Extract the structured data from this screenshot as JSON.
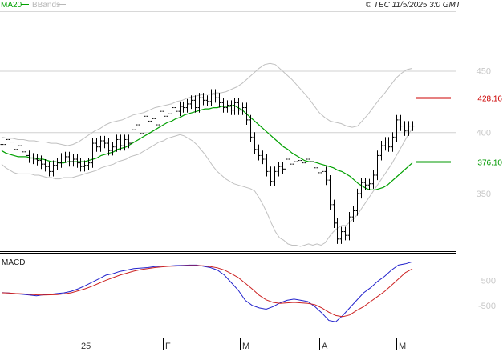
{
  "copyright": "© TEC 11/5/2025 3:0 GMT",
  "legend": {
    "ma_label": "MA20",
    "bb_label": "BBands",
    "ma_color": "#00a000",
    "bb_color": "#b8b8b8"
  },
  "colors": {
    "candle": "#000000",
    "ma": "#00a000",
    "bands": "#c0c0c0",
    "resistance": "#cc0000",
    "support": "#009900",
    "macd": "#2222cc",
    "signal": "#cc2222",
    "grid": "#cccccc"
  },
  "chart_data": [
    {
      "type": "candlestick",
      "title": "",
      "ylim": [
        300,
        470
      ],
      "y_ticks": [
        350,
        400,
        450
      ],
      "y_tick_labels": [
        "350",
        "400",
        "450"
      ],
      "x_tick_labels": [
        "25",
        "F",
        "M",
        "A",
        "M"
      ],
      "levels": [
        {
          "name": "resistance",
          "value": 428.16,
          "label": "428.16"
        },
        {
          "name": "support",
          "value": 376.1,
          "label": "376.10"
        }
      ],
      "series": [
        {
          "name": "price",
          "close": [
            390,
            394,
            392,
            386,
            389,
            384,
            381,
            379,
            378,
            377,
            374,
            372,
            368,
            373,
            375,
            379,
            380,
            376,
            378,
            375,
            372,
            373,
            375,
            391,
            388,
            393,
            391,
            385,
            388,
            394,
            389,
            394,
            391,
            402,
            406,
            399,
            413,
            409,
            411,
            406,
            417,
            413,
            415,
            420,
            417,
            421,
            420,
            423,
            426,
            420,
            428,
            426,
            425,
            431,
            428,
            424,
            420,
            422,
            418,
            424,
            418,
            420,
            410,
            396,
            386,
            381,
            378,
            368,
            360,
            368,
            372,
            370,
            378,
            374,
            376,
            377,
            375,
            378,
            376,
            371,
            367,
            368,
            361,
            341,
            326,
            313,
            319,
            316,
            331,
            336,
            350,
            359,
            357,
            358,
            365,
            381,
            389,
            392,
            388,
            396,
            410,
            405,
            401,
            405,
            405
          ]
        },
        {
          "name": "ma20",
          "values": [
            385,
            383,
            382,
            381,
            380,
            380,
            380,
            379,
            379,
            378,
            378,
            377,
            376,
            376,
            375,
            375,
            376,
            376,
            376,
            376,
            376,
            377,
            378,
            379,
            381,
            382,
            383,
            384,
            386,
            387,
            388,
            390,
            392,
            394,
            396,
            398,
            400,
            402,
            404,
            406,
            408,
            409,
            411,
            412,
            414,
            415,
            416,
            417,
            418,
            419,
            419,
            420,
            420,
            421,
            421,
            421,
            422,
            420,
            418,
            415,
            412,
            409,
            406,
            403,
            400,
            397,
            394,
            391,
            388,
            386,
            383,
            381,
            379,
            377,
            376,
            376,
            375,
            374,
            373,
            372,
            371,
            369,
            368,
            366,
            364,
            361,
            358,
            356,
            354,
            353,
            353,
            354,
            355,
            357,
            360,
            363,
            366,
            369,
            372,
            375
          ]
        },
        {
          "name": "bb_upper",
          "values": [
            396,
            395,
            395,
            394,
            394,
            393,
            393,
            392,
            392,
            391,
            391,
            390,
            389,
            390,
            392,
            395,
            398,
            401,
            403,
            406,
            408,
            409,
            410,
            412,
            414,
            415,
            416,
            418,
            420,
            421,
            422,
            423,
            425,
            426,
            428,
            429,
            430,
            431,
            431,
            432,
            432,
            433,
            435,
            437,
            440,
            444,
            448,
            452,
            455,
            456,
            455,
            451,
            447,
            443,
            438,
            433,
            428,
            422,
            416,
            412,
            409,
            408,
            407,
            405,
            404,
            405,
            410,
            415,
            421,
            427,
            432,
            438,
            444,
            448,
            451,
            452
          ]
        },
        {
          "name": "bb_lower",
          "values": [
            374,
            371,
            369,
            367,
            366,
            366,
            366,
            366,
            365,
            365,
            364,
            363,
            363,
            362,
            362,
            363,
            363,
            363,
            364,
            365,
            366,
            367,
            368,
            369,
            371,
            372,
            373,
            374,
            376,
            377,
            378,
            380,
            381,
            382,
            384,
            386,
            388,
            390,
            392,
            393,
            395,
            396,
            397,
            398,
            397,
            395,
            393,
            390,
            386,
            382,
            377,
            372,
            368,
            365,
            362,
            360,
            358,
            357,
            356,
            355,
            354,
            352,
            347,
            341,
            334,
            326,
            319,
            314,
            312,
            309,
            308,
            308,
            307,
            308,
            309,
            308,
            309,
            308,
            310,
            315,
            319,
            322,
            324,
            324,
            327,
            330,
            334,
            339,
            344,
            349,
            354,
            359,
            364,
            369,
            374,
            380,
            386,
            392,
            398,
            403
          ]
        }
      ]
    },
    {
      "type": "line",
      "title": "MACD",
      "ylim": [
        -1300,
        1500
      ],
      "y_ticks": [
        500,
        -500
      ],
      "y_tick_labels": [
        "500",
        "-500"
      ],
      "series": [
        {
          "name": "macd",
          "values": [
            10,
            -10,
            -40,
            -60,
            -90,
            -120,
            -80,
            -60,
            -30,
            0,
            60,
            160,
            280,
            420,
            560,
            700,
            760,
            850,
            900,
            960,
            980,
            1000,
            1040,
            1060,
            1060,
            1080,
            1090,
            1100,
            1100,
            1050,
            1000,
            900,
            700,
            400,
            100,
            -300,
            -500,
            -600,
            -650,
            -550,
            -400,
            -300,
            -250,
            -300,
            -350,
            -550,
            -800,
            -1100,
            -1150,
            -900,
            -600,
            -300,
            0,
            200,
            450,
            650,
            900,
            1100,
            1150,
            1230
          ]
        },
        {
          "name": "signal",
          "values": [
            0,
            -10,
            -30,
            -40,
            -60,
            -80,
            -90,
            -80,
            -70,
            -40,
            0,
            80,
            160,
            260,
            380,
            500,
            600,
            700,
            780,
            860,
            920,
            960,
            1000,
            1030,
            1050,
            1060,
            1070,
            1080,
            1080,
            1070,
            1040,
            990,
            900,
            760,
            600,
            380,
            150,
            -100,
            -280,
            -380,
            -420,
            -400,
            -380,
            -400,
            -420,
            -470,
            -600,
            -770,
            -900,
            -950,
            -880,
            -700,
            -550,
            -350,
            -150,
            50,
            300,
            550,
            800,
            950
          ]
        }
      ]
    }
  ]
}
